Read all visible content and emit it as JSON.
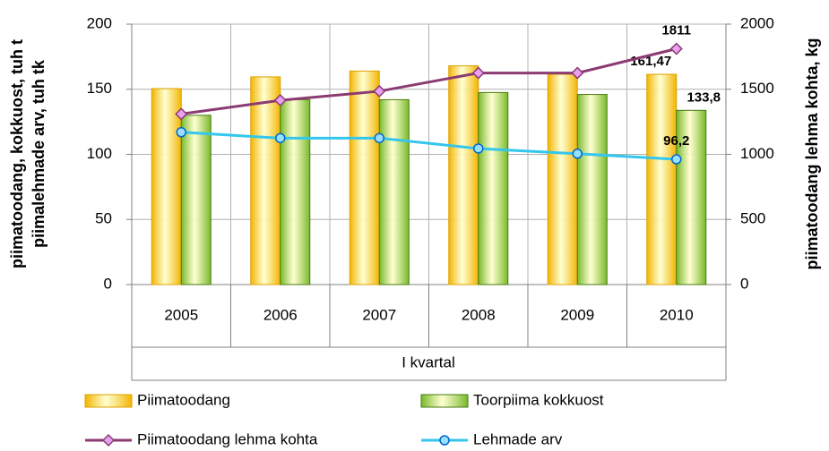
{
  "chart_data": {
    "type": "bar",
    "categories": [
      "2005",
      "2006",
      "2007",
      "2008",
      "2009",
      "2010"
    ],
    "xlabel": "I kvartal",
    "ylabel": [
      "piimatoodang, kokkuost,  tuh t",
      "piimalehmade arv, tuh tk"
    ],
    "y2label": "piimatoodang lehma kohta, kg",
    "ylim": [
      0,
      200
    ],
    "yticks": [
      0,
      50,
      100,
      150,
      200
    ],
    "y2lim": [
      0,
      2000
    ],
    "y2ticks": [
      0,
      500,
      1000,
      1500,
      2000
    ],
    "grid": true,
    "series": [
      {
        "name": "Piimatoodang",
        "type": "bar",
        "color": "#f2b400",
        "values": [
          150.5,
          159.5,
          164,
          168,
          161.5,
          161.47
        ],
        "value_labels": [
          null,
          null,
          null,
          null,
          null,
          "161,47"
        ]
      },
      {
        "name": "Toorpiima kokkuost",
        "type": "bar",
        "color": "#77b82a",
        "values": [
          130,
          142,
          142,
          147.5,
          146,
          133.8
        ],
        "value_labels": [
          null,
          null,
          null,
          null,
          null,
          "133,8"
        ]
      },
      {
        "name": "Piimatoodang lehma kohta",
        "type": "line",
        "axis": "y2",
        "color": "#8b3a72",
        "marker_color": "#e8a0f0",
        "values": [
          1310,
          1415,
          1485,
          1625,
          1625,
          1811
        ],
        "value_labels": [
          null,
          null,
          null,
          null,
          null,
          "1811"
        ]
      },
      {
        "name": "Lehmade arv",
        "type": "line",
        "color": "#33c6ee",
        "marker_color": "#99e0ff",
        "values": [
          117,
          112.5,
          112.5,
          104.5,
          100.5,
          96.2
        ],
        "value_labels": [
          null,
          null,
          null,
          null,
          null,
          "96,2"
        ]
      }
    ]
  }
}
